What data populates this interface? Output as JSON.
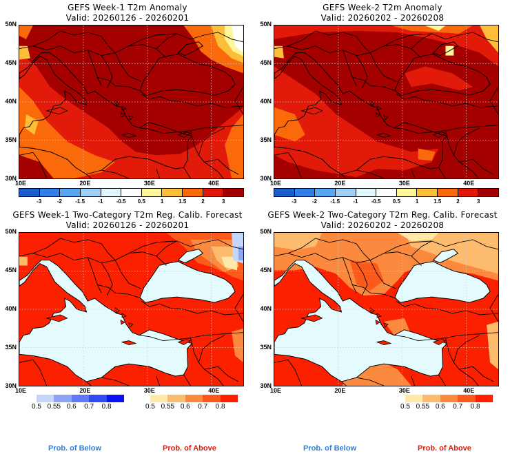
{
  "panels": [
    {
      "id": "week1-anomaly",
      "title": "GEFS Week-1 T2m Anomaly",
      "valid": "Valid: 20260126 - 20260201",
      "type": "anomaly"
    },
    {
      "id": "week2-anomaly",
      "title": "GEFS Week-2 T2m Anomaly",
      "valid": "Valid: 20260202 - 20260208",
      "type": "anomaly"
    },
    {
      "id": "week1-prob",
      "title": "GEFS Week-1 Two-Category T2m Reg. Calib. Forecast",
      "valid": "Valid: 20260126 - 20260201",
      "type": "probability"
    },
    {
      "id": "week2-prob",
      "title": "GEFS Week-2 Two-Category T2m Reg. Calib. Forecast",
      "valid": "Valid: 20260202 - 20260208",
      "type": "probability"
    }
  ],
  "axes": {
    "lat_labels": [
      "50N",
      "45N",
      "40N",
      "35N",
      "30N"
    ],
    "lon_labels": [
      "10E",
      "20E",
      "30E",
      "40E"
    ],
    "lat_range": [
      30,
      50
    ],
    "lon_range": [
      10,
      45
    ]
  },
  "anomaly_colorbar": {
    "labels": [
      "-3",
      "-2",
      "-1.5",
      "-1",
      "-0.5",
      "0.5",
      "1",
      "1.5",
      "2",
      "3"
    ],
    "colors": [
      "#1a5fcc",
      "#2e80e8",
      "#5aa6f0",
      "#9fd0f8",
      "#e0f8fc",
      "#ffffff",
      "#fff59a",
      "#fdbe3a",
      "#fb6a0a",
      "#e21a0a",
      "#a50000"
    ]
  },
  "below_colorbar": {
    "labels": [
      "0.5",
      "0.55",
      "0.6",
      "0.7",
      "0.8"
    ],
    "colors": [
      "#c5d6fb",
      "#8ea5f7",
      "#5f78f5",
      "#2f4af2",
      "#0a10ef"
    ]
  },
  "above_colorbar": {
    "labels": [
      "0.5",
      "0.55",
      "0.6",
      "0.7",
      "0.8"
    ],
    "colors": [
      "#ffe8a8",
      "#fdbb6e",
      "#fc8a3e",
      "#fb5a1a",
      "#fa2000"
    ]
  },
  "footer": {
    "below_label": "Prob. of Below",
    "above_label": "Prob. of Above",
    "below_color": "#2f7fe0",
    "above_color": "#e01a0a"
  },
  "map_colors": {
    "sea_prob": "#e4fbfd",
    "border": "#000000"
  }
}
